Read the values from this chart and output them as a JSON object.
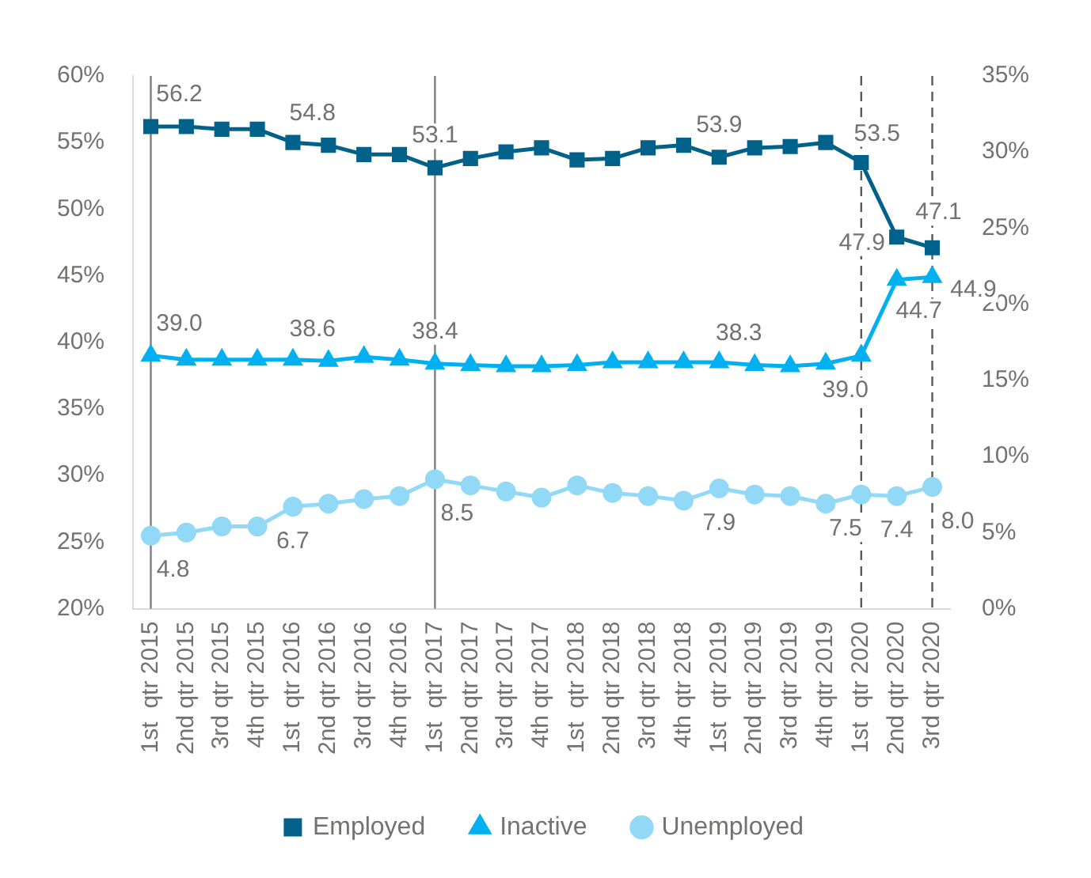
{
  "chart_data": {
    "type": "line",
    "categories": [
      "1st  qtr 2015",
      "2nd qtr 2015",
      "3rd qtr 2015",
      "4th qtr 2015",
      "1st  qtr 2016",
      "2nd qtr 2016",
      "3rd qtr 2016",
      "4th qtr 2016",
      "1st  qtr 2017",
      "2nd qtr 2017",
      "3rd qtr 2017",
      "4th qtr 2017",
      "1st  qtr 2018",
      "2nd qtr 2018",
      "3rd qtr 2018",
      "4th qtr 2018",
      "1st  qtr 2019",
      "2nd qtr 2019",
      "3rd qtr 2019",
      "4th qtr 2019",
      "1st  qtr 2020",
      "2nd qtr 2020",
      "3rd qtr 2020"
    ],
    "series": [
      {
        "name": "Employed",
        "color": "#00628b",
        "marker": "square",
        "values": [
          56.2,
          56.2,
          56.0,
          56.0,
          55.0,
          54.8,
          54.1,
          54.1,
          53.1,
          53.8,
          54.3,
          54.6,
          53.7,
          53.8,
          54.6,
          54.8,
          53.9,
          54.6,
          54.7,
          55.0,
          53.5,
          47.9,
          47.1
        ],
        "value_labels": [
          "56.2",
          null,
          null,
          null,
          null,
          "54.8",
          null,
          null,
          "53.1",
          null,
          null,
          null,
          null,
          null,
          null,
          null,
          "53.9",
          null,
          null,
          null,
          "53.5",
          "47.9",
          "47.1"
        ]
      },
      {
        "name": "Inactive",
        "color": "#00b0f0",
        "marker": "triangle",
        "values": [
          39.0,
          38.7,
          38.7,
          38.7,
          38.7,
          38.6,
          38.9,
          38.7,
          38.4,
          38.3,
          38.2,
          38.2,
          38.3,
          38.5,
          38.5,
          38.5,
          38.5,
          38.3,
          38.2,
          38.4,
          39.0,
          44.7,
          44.9
        ],
        "value_labels": [
          "39.0",
          null,
          null,
          null,
          null,
          "38.6",
          null,
          null,
          "38.4",
          null,
          null,
          null,
          null,
          null,
          null,
          null,
          null,
          "38.3",
          null,
          null,
          "39.0",
          "44.7",
          "44.9"
        ]
      },
      {
        "name": "Unemployed",
        "color": "#92d9f8",
        "marker": "circle",
        "axis": "y2",
        "values": [
          4.8,
          5.0,
          5.4,
          5.4,
          6.7,
          6.9,
          7.2,
          7.4,
          8.5,
          8.1,
          7.7,
          7.3,
          8.1,
          7.6,
          7.4,
          7.1,
          7.9,
          7.5,
          7.4,
          6.9,
          7.5,
          7.4,
          8.0
        ],
        "value_labels": [
          "4.8",
          null,
          null,
          null,
          "6.7",
          null,
          null,
          null,
          "8.5",
          null,
          null,
          null,
          null,
          null,
          null,
          null,
          "7.9",
          null,
          null,
          null,
          "7.5",
          "7.4",
          "8.0"
        ]
      }
    ],
    "ylim": [
      20,
      60
    ],
    "yticks": [
      {
        "value": 20,
        "label": "20%"
      },
      {
        "value": 25,
        "label": "25%"
      },
      {
        "value": 30,
        "label": "30%"
      },
      {
        "value": 35,
        "label": "35%"
      },
      {
        "value": 40,
        "label": "40%"
      },
      {
        "value": 45,
        "label": "45%"
      },
      {
        "value": 50,
        "label": "50%"
      },
      {
        "value": 55,
        "label": "55%"
      },
      {
        "value": 60,
        "label": "60%"
      }
    ],
    "y2lim": [
      0,
      35
    ],
    "y2ticks": [
      {
        "value": 0,
        "label": "0%"
      },
      {
        "value": 5,
        "label": "5%"
      },
      {
        "value": 10,
        "label": "10%"
      },
      {
        "value": 15,
        "label": "15%"
      },
      {
        "value": 20,
        "label": "20%"
      },
      {
        "value": 25,
        "label": "25%"
      },
      {
        "value": 30,
        "label": "30%"
      },
      {
        "value": 35,
        "label": "35%"
      }
    ],
    "ref_lines": [
      {
        "axis": "x",
        "value": "1st  qtr 2015",
        "color": "#7f7f7f",
        "line_style": "solid"
      },
      {
        "axis": "x",
        "value": "1st  qtr 2017",
        "color": "#7f7f7f",
        "line_style": "solid"
      },
      {
        "axis": "x",
        "value": "1st  qtr 2020",
        "color": "#595959",
        "line_style": "dashed"
      },
      {
        "axis": "x",
        "value": "3rd qtr 2020",
        "color": "#595959",
        "line_style": "dashed"
      }
    ],
    "grid": false,
    "legend": "bottom"
  }
}
